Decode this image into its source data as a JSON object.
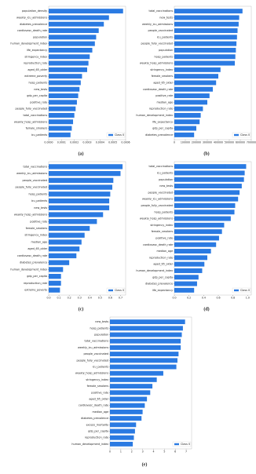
{
  "chart_data": [
    {
      "type": "bar",
      "orientation": "horizontal",
      "caption": "(a)",
      "categories": [
        "population_density",
        "weekly_icu_admissions",
        "diabetes_prevalence",
        "cardiovasc_death_rate",
        "population",
        "human_development_index",
        "life_expectancy",
        "stringency_index",
        "reproduction_rate",
        "aged_65_older",
        "extreme_poverty",
        "hosp_patients",
        "new_tests",
        "gdp_per_capita",
        "positive_rate",
        "people_fully_vaccinated",
        "total_vaccinations",
        "weekly_hosp_admissions",
        "female_smokers",
        "icu_patients"
      ],
      "series": [
        {
          "name": "Class 0",
          "color": "#2a7ae2",
          "values": [
            0.00058,
            0.00047,
            0.00043,
            0.00039,
            0.00037,
            0.00036,
            0.00034,
            0.00032,
            0.00031,
            0.0003,
            0.00026,
            0.00025,
            0.00024,
            0.00023,
            0.00022,
            0.00021,
            0.0002,
            0.00019,
            0.00018,
            0.00017
          ]
        }
      ],
      "xlim": [
        0,
        0.0006
      ],
      "xticks": [
        {
          "value": 0,
          "label": "0.0000"
        },
        {
          "value": 0.0001,
          "label": "0.0001"
        },
        {
          "value": 0.0002,
          "label": "0.0002"
        },
        {
          "value": 0.0003,
          "label": "0.0003"
        },
        {
          "value": 0.0004,
          "label": "0.0004"
        },
        {
          "value": 0.0005,
          "label": "0.0005"
        },
        {
          "value": 0.0006,
          "label": "0.0006"
        }
      ],
      "legend": "lower right"
    },
    {
      "type": "bar",
      "orientation": "horizontal",
      "caption": "(b)",
      "categories": [
        "total_vaccinations",
        "new_tests",
        "weekly_icu_admissions",
        "people_vaccinated",
        "icu_patients",
        "people_fully_vaccinated",
        "population",
        "hosp_patients",
        "weekly_hosp_admissions",
        "stringency_index",
        "female_smokers",
        "aged_65_older",
        "cardiovasc_death_rate",
        "positive_rate",
        "median_age",
        "reproduction_rate",
        "human_development_index",
        "life_expectancy",
        "gdp_per_capita",
        "diabetes_prevalence"
      ],
      "series": [
        {
          "name": "Class 0",
          "color": "#2a7ae2",
          "values": [
            620000,
            590000,
            585000,
            575000,
            570000,
            565000,
            560000,
            555000,
            550000,
            420000,
            400000,
            380000,
            350000,
            320000,
            300000,
            260000,
            240000,
            230000,
            200000,
            180000
          ]
        }
      ],
      "xlim": [
        0,
        700000
      ],
      "xticks": [
        0,
        100000,
        200000,
        300000,
        400000,
        500000,
        600000,
        700000
      ],
      "legend": "lower right"
    },
    {
      "type": "bar",
      "orientation": "horizontal",
      "caption": "(c)",
      "categories": [
        "total_vaccinations",
        "weekly_icu_admissions",
        "people_vaccinated",
        "people_fully_vaccinated",
        "hosp_patients",
        "icu_patients",
        "new_tests",
        "weekly_hosp_admissions",
        "positive_rate",
        "female_smokers",
        "stringency_index",
        "median_age",
        "aged_65_older",
        "cardiovasc_death_rate",
        "diabetes_prevalence",
        "human_development_index",
        "gdp_per_capita",
        "reproduction_rate",
        "extreme_poverty"
      ],
      "series": [
        {
          "name": "Class 0",
          "color": "#2a7ae2",
          "values": [
            0.72,
            0.7,
            0.63,
            0.62,
            0.6,
            0.59,
            0.59,
            0.53,
            0.47,
            0.4,
            0.35,
            0.32,
            0.3,
            0.27,
            0.2,
            0.14,
            0.12,
            0.12,
            0.11
          ]
        }
      ],
      "xlim": [
        0,
        0.75
      ],
      "xticks": [
        {
          "value": 0,
          "label": "0.0"
        },
        0.1,
        0.2,
        0.3,
        0.4,
        0.5,
        0.6,
        0.7
      ],
      "legend": "lower right"
    },
    {
      "type": "bar",
      "orientation": "horizontal",
      "caption": "(d)",
      "categories": [
        "total_vaccinations",
        "icu_patients",
        "population",
        "new_tests",
        "people_vaccinated",
        "weekly_icu_admissions",
        "people_fully_vaccinated",
        "hosp_patients",
        "weekly_hosp_admissions",
        "stringency_index",
        "female_smokers",
        "positive_rate",
        "cardiovasc_death_rate",
        "median_age",
        "reproduction_rate",
        "aged_65_older",
        "human_development_index",
        "gdp_per_capita",
        "diabetes_prevalence",
        "life_expectancy"
      ],
      "series": [
        {
          "name": "Class 0",
          "color": "#2a7ae2",
          "values": [
            0.98,
            0.96,
            0.95,
            0.92,
            0.89,
            0.87,
            0.83,
            0.82,
            0.77,
            0.68,
            0.65,
            0.61,
            0.57,
            0.5,
            0.45,
            0.41,
            0.38,
            0.33,
            0.31,
            0.27
          ]
        }
      ],
      "xlim": [
        0,
        1.05
      ],
      "xticks": [
        {
          "value": 0,
          "label": "0.0"
        },
        0.2,
        0.4,
        0.6,
        0.8,
        {
          "value": 1,
          "label": "1.0"
        }
      ],
      "legend": "lower right"
    },
    {
      "type": "bar",
      "orientation": "horizontal",
      "caption": "(e)",
      "categories": [
        "new_tests",
        "hosp_patients",
        "population",
        "total_vaccinations",
        "weekly_icu_admissions",
        "people_vaccinated",
        "people_fully_vaccinated",
        "icu_patients",
        "weekly_hosp_admissions",
        "stringency_index",
        "female_smokers",
        "positive_rate",
        "aged_65_older",
        "cardiovasc_death_rate",
        "median_age",
        "diabetes_prevalence",
        "excess_mortality",
        "gdp_per_capita",
        "reproduction_rate",
        "human_development_index"
      ],
      "series": [
        {
          "name": "Class 0",
          "color": "#2a7ae2",
          "values": [
            6.9,
            6.7,
            6.6,
            6.5,
            6.5,
            6.3,
            6.2,
            6.1,
            4.9,
            4.3,
            3.9,
            3.7,
            3.4,
            3.2,
            3.0,
            2.9,
            2.4,
            2.3,
            2.2,
            2.1
          ]
        }
      ],
      "xlim": [
        0,
        7.5
      ],
      "xticks": [
        0,
        1,
        2,
        3,
        4,
        5,
        6,
        7
      ],
      "legend": "lower right"
    }
  ]
}
